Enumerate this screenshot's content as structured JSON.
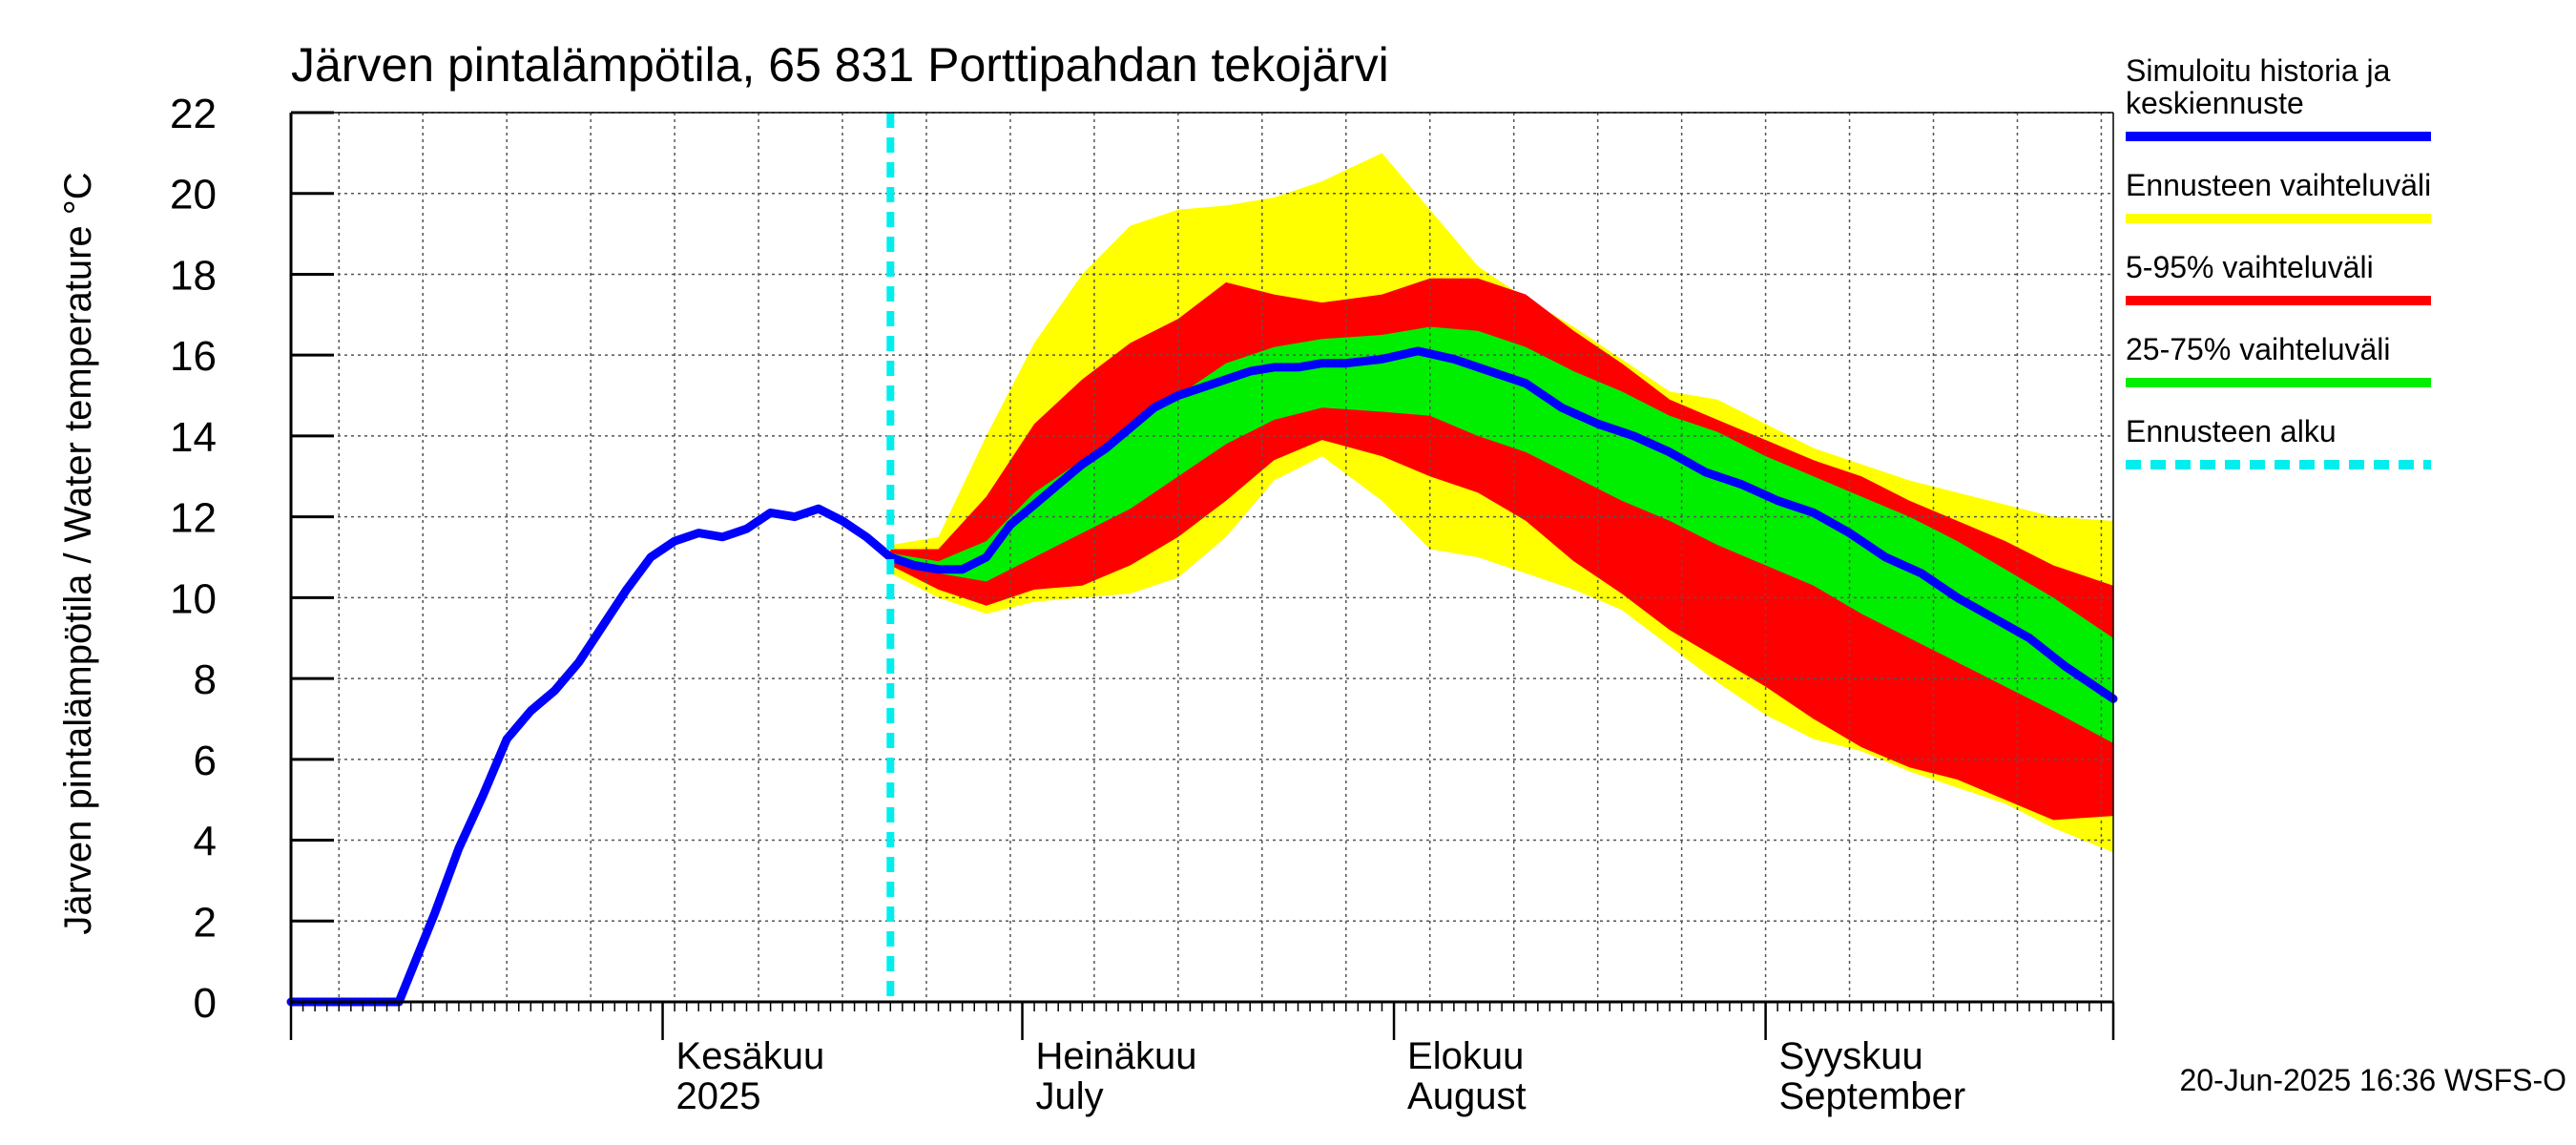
{
  "chart_data": {
    "type": "area",
    "title": "Järven pintalämpötila, 65 831 Porttipahdan tekojärvi",
    "ylabel": "Järven pintalämpötila / Water temperature °C",
    "ylim": [
      0,
      22
    ],
    "y_ticks": [
      0,
      2,
      4,
      6,
      8,
      10,
      12,
      14,
      16,
      18,
      20,
      22
    ],
    "xlim": [
      "2025-05-01",
      "2025-09-30"
    ],
    "x_tick_labels": [
      {
        "date": "2025-06-01",
        "line1": "Kesäkuu",
        "line2": "2025"
      },
      {
        "date": "2025-07-01",
        "line1": "Heinäkuu",
        "line2": "July"
      },
      {
        "date": "2025-08-01",
        "line1": "Elokuu",
        "line2": "August"
      },
      {
        "date": "2025-09-01",
        "line1": "Syyskuu",
        "line2": "September"
      }
    ],
    "forecast_start": "2025-06-20",
    "grid": true,
    "legend_position": "right",
    "legend": [
      {
        "key": "history",
        "label_lines": [
          "Simuloitu historia ja",
          "keskiennuste"
        ],
        "color": "#0000ff",
        "style": "solid"
      },
      {
        "key": "range",
        "label_lines": [
          "Ennusteen vaihteluväli"
        ],
        "color": "#ffff00",
        "style": "solid"
      },
      {
        "key": "p5_95",
        "label_lines": [
          "5-95% vaihteluväli"
        ],
        "color": "#ff0000",
        "style": "solid"
      },
      {
        "key": "p25_75",
        "label_lines": [
          "25-75% vaihteluväli"
        ],
        "color": "#00ee00",
        "style": "solid"
      },
      {
        "key": "start",
        "label_lines": [
          "Ennusteen alku"
        ],
        "color": "#00eeee",
        "style": "dashed"
      }
    ],
    "series": [
      {
        "key": "median",
        "color": "#0000ff",
        "x": [
          "2025-05-01",
          "2025-05-04",
          "2025-05-07",
          "2025-05-10",
          "2025-05-13",
          "2025-05-15",
          "2025-05-17",
          "2025-05-19",
          "2025-05-21",
          "2025-05-23",
          "2025-05-25",
          "2025-05-27",
          "2025-05-29",
          "2025-05-31",
          "2025-06-02",
          "2025-06-04",
          "2025-06-06",
          "2025-06-08",
          "2025-06-10",
          "2025-06-12",
          "2025-06-14",
          "2025-06-16",
          "2025-06-18",
          "2025-06-20",
          "2025-06-22",
          "2025-06-24",
          "2025-06-26",
          "2025-06-28",
          "2025-06-30",
          "2025-07-02",
          "2025-07-04",
          "2025-07-06",
          "2025-07-08",
          "2025-07-10",
          "2025-07-12",
          "2025-07-14",
          "2025-07-16",
          "2025-07-18",
          "2025-07-20",
          "2025-07-22",
          "2025-07-24",
          "2025-07-26",
          "2025-07-28",
          "2025-07-31",
          "2025-08-03",
          "2025-08-06",
          "2025-08-09",
          "2025-08-12",
          "2025-08-15",
          "2025-08-18",
          "2025-08-21",
          "2025-08-24",
          "2025-08-27",
          "2025-08-30",
          "2025-09-02",
          "2025-09-05",
          "2025-09-08",
          "2025-09-11",
          "2025-09-14",
          "2025-09-17",
          "2025-09-20",
          "2025-09-23",
          "2025-09-26",
          "2025-09-30"
        ],
        "y": [
          0,
          0,
          0,
          0,
          2.2,
          3.8,
          5.1,
          6.5,
          7.2,
          7.7,
          8.4,
          9.3,
          10.2,
          11.0,
          11.4,
          11.6,
          11.5,
          11.7,
          12.1,
          12.0,
          12.2,
          11.9,
          11.5,
          11.0,
          10.8,
          10.7,
          10.7,
          11.0,
          11.8,
          12.3,
          12.8,
          13.3,
          13.7,
          14.2,
          14.7,
          15.0,
          15.2,
          15.4,
          15.6,
          15.7,
          15.7,
          15.8,
          15.8,
          15.9,
          16.1,
          15.9,
          15.6,
          15.3,
          14.7,
          14.3,
          14.0,
          13.6,
          13.1,
          12.8,
          12.4,
          12.1,
          11.6,
          11.0,
          10.6,
          10.0,
          9.5,
          9.0,
          8.3,
          7.5
        ]
      },
      {
        "key": "p25_75",
        "color": "#00ee00",
        "x": [
          "2025-06-20",
          "2025-06-24",
          "2025-06-28",
          "2025-07-02",
          "2025-07-06",
          "2025-07-10",
          "2025-07-14",
          "2025-07-18",
          "2025-07-22",
          "2025-07-26",
          "2025-07-31",
          "2025-08-04",
          "2025-08-08",
          "2025-08-12",
          "2025-08-16",
          "2025-08-20",
          "2025-08-24",
          "2025-08-28",
          "2025-09-01",
          "2025-09-05",
          "2025-09-09",
          "2025-09-13",
          "2025-09-17",
          "2025-09-21",
          "2025-09-25",
          "2025-09-30"
        ],
        "low": [
          10.9,
          10.6,
          10.4,
          11.0,
          11.6,
          12.2,
          13.0,
          13.8,
          14.4,
          14.7,
          14.6,
          14.5,
          14.0,
          13.6,
          13.0,
          12.4,
          11.9,
          11.3,
          10.8,
          10.3,
          9.6,
          9.0,
          8.4,
          7.8,
          7.2,
          6.4
        ],
        "high": [
          11.1,
          10.9,
          11.4,
          12.6,
          13.4,
          14.2,
          15.0,
          15.8,
          16.2,
          16.4,
          16.5,
          16.7,
          16.6,
          16.2,
          15.6,
          15.1,
          14.5,
          14.1,
          13.5,
          13.0,
          12.5,
          12.0,
          11.4,
          10.7,
          10.0,
          9.0
        ]
      },
      {
        "key": "p5_95",
        "color": "#ff0000",
        "x": [
          "2025-06-20",
          "2025-06-24",
          "2025-06-28",
          "2025-07-02",
          "2025-07-06",
          "2025-07-10",
          "2025-07-14",
          "2025-07-18",
          "2025-07-22",
          "2025-07-26",
          "2025-07-31",
          "2025-08-04",
          "2025-08-08",
          "2025-08-12",
          "2025-08-16",
          "2025-08-20",
          "2025-08-24",
          "2025-08-28",
          "2025-09-01",
          "2025-09-05",
          "2025-09-09",
          "2025-09-13",
          "2025-09-17",
          "2025-09-21",
          "2025-09-25",
          "2025-09-30"
        ],
        "low": [
          10.8,
          10.2,
          9.8,
          10.2,
          10.3,
          10.8,
          11.5,
          12.4,
          13.4,
          13.9,
          13.5,
          13.0,
          12.6,
          11.9,
          10.9,
          10.1,
          9.2,
          8.5,
          7.8,
          7.0,
          6.3,
          5.8,
          5.5,
          5.0,
          4.5,
          4.6
        ],
        "high": [
          11.2,
          11.2,
          12.5,
          14.3,
          15.4,
          16.3,
          16.9,
          17.8,
          17.5,
          17.3,
          17.5,
          17.9,
          17.9,
          17.5,
          16.6,
          15.8,
          14.9,
          14.4,
          13.9,
          13.4,
          13.0,
          12.4,
          11.9,
          11.4,
          10.8,
          10.3
        ]
      },
      {
        "key": "range",
        "color": "#ffff00",
        "x": [
          "2025-06-20",
          "2025-06-24",
          "2025-06-28",
          "2025-07-02",
          "2025-07-06",
          "2025-07-10",
          "2025-07-14",
          "2025-07-18",
          "2025-07-22",
          "2025-07-26",
          "2025-07-31",
          "2025-08-04",
          "2025-08-08",
          "2025-08-12",
          "2025-08-16",
          "2025-08-20",
          "2025-08-24",
          "2025-08-28",
          "2025-09-01",
          "2025-09-05",
          "2025-09-09",
          "2025-09-13",
          "2025-09-17",
          "2025-09-21",
          "2025-09-25",
          "2025-09-30"
        ],
        "low": [
          10.6,
          10.0,
          9.6,
          9.9,
          10.0,
          10.1,
          10.5,
          11.5,
          12.9,
          13.5,
          12.4,
          11.2,
          11.0,
          10.6,
          10.2,
          9.7,
          8.8,
          7.9,
          7.1,
          6.5,
          6.2,
          5.7,
          5.3,
          4.9,
          4.3,
          3.7
        ],
        "high": [
          11.3,
          11.5,
          14.0,
          16.3,
          18.0,
          19.2,
          19.6,
          19.7,
          19.9,
          20.3,
          21.0,
          19.6,
          18.2,
          17.4,
          16.7,
          15.9,
          15.1,
          14.9,
          14.3,
          13.7,
          13.3,
          12.9,
          12.6,
          12.3,
          12.0,
          11.9
        ]
      }
    ]
  },
  "footer": "20-Jun-2025 16:36 WSFS-O"
}
